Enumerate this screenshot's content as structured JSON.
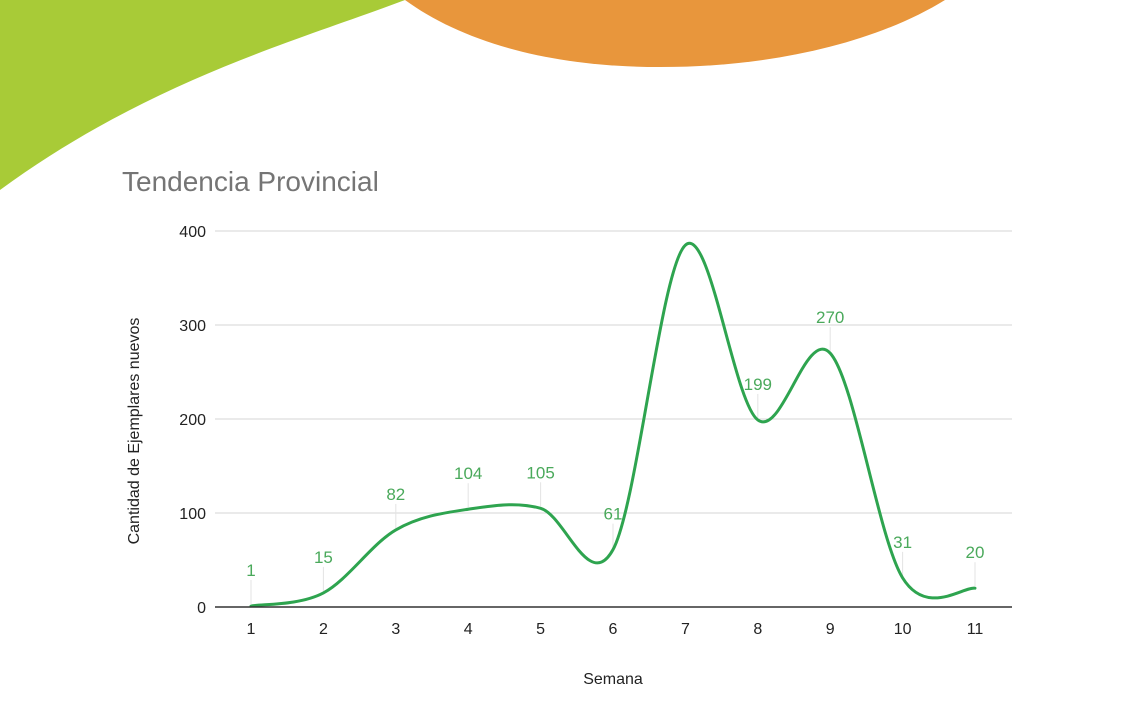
{
  "colors": {
    "background": "#ffffff",
    "decor_green": "#a8cb37",
    "decor_orange": "#e8963c",
    "series_line": "#2ea44f",
    "data_label": "#4aa95b",
    "gridline": "#d6d6d6",
    "axis_line": "#333333",
    "title_text": "#757575",
    "axis_text": "#222222"
  },
  "chart_data": {
    "type": "line",
    "title": "Tendencia Provincial",
    "xlabel": "Semana",
    "ylabel": "Cantidad de Ejemplares nuevos",
    "categories": [
      "1",
      "2",
      "3",
      "4",
      "5",
      "6",
      "7",
      "8",
      "9",
      "10",
      "11"
    ],
    "series": [
      {
        "values": [
          1,
          15,
          82,
          104,
          105,
          61,
          385,
          199,
          270,
          31,
          20
        ]
      }
    ],
    "data_labels": [
      "1",
      "15",
      "82",
      "104",
      "105",
      "61",
      "",
      "199",
      "270",
      "31",
      "20"
    ],
    "ylim": [
      0,
      400
    ],
    "yticks": [
      0,
      100,
      200,
      300,
      400
    ],
    "smooth": true,
    "grid": true,
    "legend": "none"
  }
}
